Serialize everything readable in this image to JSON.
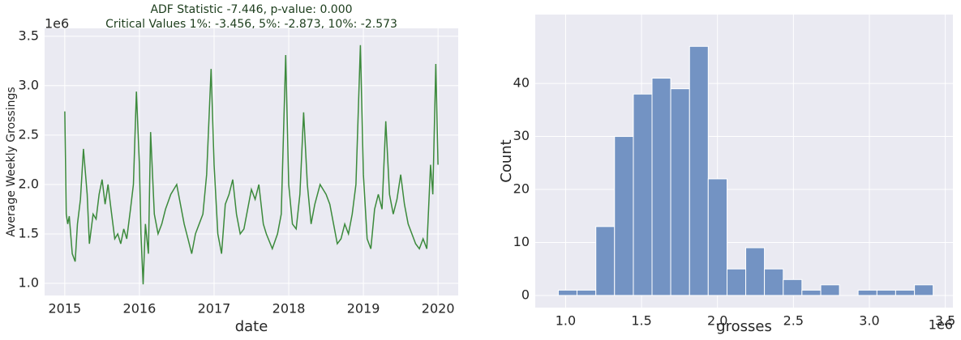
{
  "chart_data": [
    {
      "type": "line",
      "title": "ADF Statistic -7.446, p-value: 0.000",
      "subtitle": "Critical Values 1%: -3.456, 5%: -2.873, 10%: -2.573",
      "x_label": "date",
      "y_label": "Average Weekly Grossings",
      "y_offset": "1e6",
      "color": "#3c8a3c",
      "grid": true,
      "xlim": [
        2014.73,
        2020.27
      ],
      "xticks": [
        2015,
        2016,
        2017,
        2018,
        2019,
        2020
      ],
      "ylim": [
        0.877,
        3.58
      ],
      "yticks": [
        {
          "value": 1,
          "label": "1.0"
        },
        1.5,
        {
          "value": 2,
          "label": "2.0"
        },
        2.5,
        {
          "value": 3,
          "label": "3.0"
        },
        3.5
      ],
      "x": [
        2015.0,
        2015.02,
        2015.04,
        2015.06,
        2015.1,
        2015.14,
        2015.17,
        2015.21,
        2015.25,
        2015.3,
        2015.33,
        2015.38,
        2015.42,
        2015.46,
        2015.5,
        2015.54,
        2015.58,
        2015.62,
        2015.67,
        2015.71,
        2015.75,
        2015.79,
        2015.83,
        2015.88,
        2015.92,
        2015.96,
        2016.0,
        2016.02,
        2016.05,
        2016.08,
        2016.12,
        2016.15,
        2016.2,
        2016.25,
        2016.3,
        2016.35,
        2016.42,
        2016.5,
        2016.55,
        2016.6,
        2016.65,
        2016.7,
        2016.75,
        2016.8,
        2016.85,
        2016.9,
        2016.96,
        2017.0,
        2017.05,
        2017.1,
        2017.15,
        2017.2,
        2017.25,
        2017.3,
        2017.35,
        2017.4,
        2017.45,
        2017.5,
        2017.55,
        2017.6,
        2017.66,
        2017.7,
        2017.78,
        2017.85,
        2017.9,
        2017.96,
        2018.0,
        2018.05,
        2018.1,
        2018.15,
        2018.2,
        2018.25,
        2018.3,
        2018.35,
        2018.42,
        2018.5,
        2018.55,
        2018.6,
        2018.65,
        2018.7,
        2018.75,
        2018.8,
        2018.85,
        2018.9,
        2018.96,
        2019.0,
        2019.05,
        2019.1,
        2019.15,
        2019.2,
        2019.25,
        2019.3,
        2019.35,
        2019.4,
        2019.45,
        2019.5,
        2019.55,
        2019.6,
        2019.65,
        2019.7,
        2019.75,
        2019.8,
        2019.85,
        2019.9,
        2019.93,
        2019.97,
        2020.0
      ],
      "values": [
        2.74,
        1.7,
        1.6,
        1.68,
        1.3,
        1.22,
        1.6,
        1.85,
        2.36,
        1.9,
        1.4,
        1.7,
        1.65,
        1.9,
        2.05,
        1.8,
        2.0,
        1.75,
        1.45,
        1.5,
        1.4,
        1.55,
        1.45,
        1.75,
        2.0,
        2.94,
        2.2,
        1.5,
        0.99,
        1.6,
        1.3,
        2.53,
        1.7,
        1.5,
        1.6,
        1.75,
        1.9,
        2.0,
        1.8,
        1.6,
        1.45,
        1.3,
        1.5,
        1.6,
        1.7,
        2.1,
        3.17,
        2.2,
        1.5,
        1.3,
        1.8,
        1.9,
        2.05,
        1.7,
        1.5,
        1.55,
        1.75,
        1.95,
        1.85,
        2.0,
        1.6,
        1.5,
        1.35,
        1.5,
        1.7,
        3.31,
        2.0,
        1.6,
        1.55,
        1.9,
        2.73,
        2.0,
        1.6,
        1.8,
        2.0,
        1.9,
        1.8,
        1.6,
        1.4,
        1.45,
        1.6,
        1.5,
        1.7,
        2.0,
        3.41,
        2.1,
        1.45,
        1.35,
        1.75,
        1.9,
        1.75,
        2.64,
        1.9,
        1.7,
        1.85,
        2.1,
        1.8,
        1.6,
        1.5,
        1.4,
        1.35,
        1.45,
        1.35,
        2.2,
        1.9,
        3.22,
        2.2
      ]
    },
    {
      "type": "histogram",
      "x_label": "grosses",
      "y_label": "Count",
      "x_offset": "1e6",
      "color": "#7393c3",
      "grid": true,
      "xlim": [
        0.8,
        3.55
      ],
      "xticks": [
        {
          "value": 1,
          "label": "1.0"
        },
        1.5,
        {
          "value": 2,
          "label": "2.0"
        },
        2.5,
        {
          "value": 3,
          "label": "3.0"
        },
        3.5
      ],
      "ylim": [
        -2.3,
        53
      ],
      "yticks": [
        0,
        10,
        20,
        30,
        40
      ],
      "bins": [
        0.952,
        1.075,
        1.199,
        1.322,
        1.446,
        1.569,
        1.692,
        1.816,
        1.939,
        2.063,
        2.186,
        2.309,
        2.433,
        2.556,
        2.68,
        2.803,
        2.926,
        3.05,
        3.173,
        3.297,
        3.42
      ],
      "counts": [
        1,
        1,
        13,
        30,
        38,
        41,
        39,
        47,
        22,
        5,
        9,
        5,
        3,
        1,
        2,
        0,
        1,
        1,
        1,
        2
      ]
    }
  ]
}
